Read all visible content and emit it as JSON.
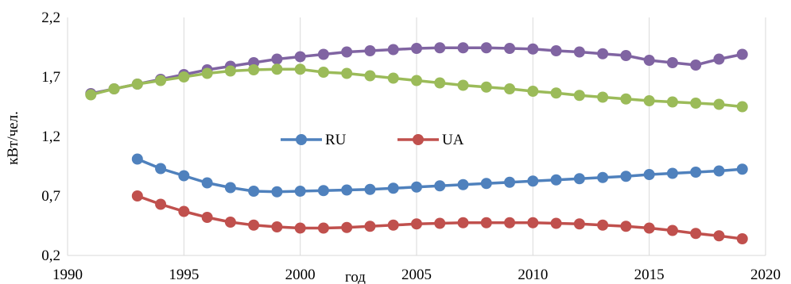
{
  "chart_data": {
    "type": "line",
    "title": "",
    "xlabel": "год",
    "ylabel": "кВт/чел.",
    "xlim": [
      1990,
      2020
    ],
    "ylim": [
      0.2,
      2.2
    ],
    "xticks": [
      "1990",
      "1995",
      "2000",
      "2005",
      "2010",
      "2015",
      "2020"
    ],
    "yticks": [
      "0,2",
      "0,7",
      "1,2",
      "1,7",
      "2,2"
    ],
    "grid": "vertical",
    "legend": [
      "RU",
      "UA"
    ],
    "series": [
      {
        "name": "",
        "color": "#8064a2",
        "x": [
          1991,
          1992,
          1993,
          1994,
          1995,
          1996,
          1997,
          1998,
          1999,
          2000,
          2001,
          2002,
          2003,
          2004,
          2005,
          2006,
          2007,
          2008,
          2009,
          2010,
          2011,
          2012,
          2013,
          2014,
          2015,
          2016,
          2017,
          2018,
          2019
        ],
        "values": [
          1.56,
          1.6,
          1.64,
          1.68,
          1.72,
          1.76,
          1.79,
          1.82,
          1.85,
          1.87,
          1.89,
          1.91,
          1.92,
          1.93,
          1.94,
          1.945,
          1.945,
          1.945,
          1.94,
          1.935,
          1.92,
          1.91,
          1.895,
          1.88,
          1.84,
          1.82,
          1.8,
          1.85,
          1.89
        ]
      },
      {
        "name": "",
        "color": "#9bbb59",
        "x": [
          1991,
          1992,
          1993,
          1994,
          1995,
          1996,
          1997,
          1998,
          1999,
          2000,
          2001,
          2002,
          2003,
          2004,
          2005,
          2006,
          2007,
          2008,
          2009,
          2010,
          2011,
          2012,
          2013,
          2014,
          2015,
          2016,
          2017,
          2018,
          2019
        ],
        "values": [
          1.55,
          1.6,
          1.64,
          1.67,
          1.7,
          1.73,
          1.75,
          1.76,
          1.765,
          1.765,
          1.74,
          1.73,
          1.71,
          1.69,
          1.67,
          1.65,
          1.63,
          1.615,
          1.6,
          1.58,
          1.565,
          1.545,
          1.53,
          1.515,
          1.5,
          1.49,
          1.48,
          1.47,
          1.45
        ]
      },
      {
        "name": "RU",
        "color": "#4f81bd",
        "x": [
          1993,
          1994,
          1995,
          1996,
          1997,
          1998,
          1999,
          2000,
          2001,
          2002,
          2003,
          2004,
          2005,
          2006,
          2007,
          2008,
          2009,
          2010,
          2011,
          2012,
          2013,
          2014,
          2015,
          2016,
          2017,
          2018,
          2019
        ],
        "values": [
          1.01,
          0.93,
          0.87,
          0.81,
          0.77,
          0.74,
          0.735,
          0.74,
          0.745,
          0.75,
          0.755,
          0.765,
          0.775,
          0.785,
          0.795,
          0.805,
          0.815,
          0.825,
          0.835,
          0.845,
          0.855,
          0.865,
          0.88,
          0.89,
          0.9,
          0.91,
          0.925
        ]
      },
      {
        "name": "UA",
        "color": "#c0504d",
        "x": [
          1993,
          1994,
          1995,
          1996,
          1997,
          1998,
          1999,
          2000,
          2001,
          2002,
          2003,
          2004,
          2005,
          2006,
          2007,
          2008,
          2009,
          2010,
          2011,
          2012,
          2013,
          2014,
          2015,
          2016,
          2017,
          2018,
          2019
        ],
        "values": [
          0.7,
          0.63,
          0.57,
          0.52,
          0.48,
          0.455,
          0.44,
          0.43,
          0.43,
          0.435,
          0.445,
          0.455,
          0.465,
          0.47,
          0.475,
          0.475,
          0.475,
          0.475,
          0.47,
          0.465,
          0.455,
          0.445,
          0.43,
          0.41,
          0.385,
          0.365,
          0.34
        ]
      }
    ]
  }
}
